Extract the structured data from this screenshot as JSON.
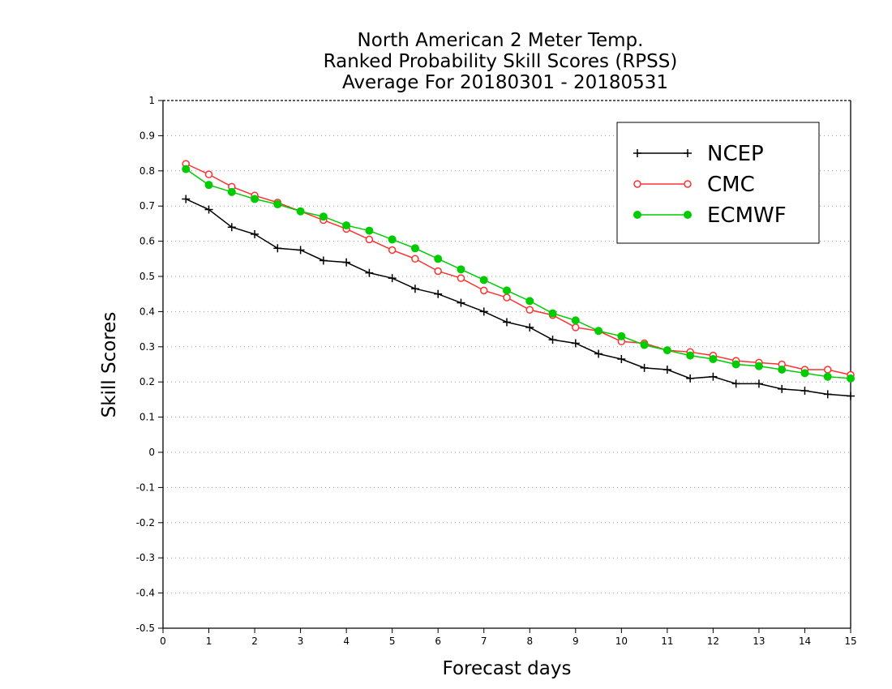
{
  "chart_data": {
    "type": "line",
    "title_lines": [
      "North American 2 Meter Temp.",
      "Ranked Probability Skill Scores (RPSS)",
      "Average For 20180301 - 20180531"
    ],
    "xlabel": "Forecast days",
    "ylabel": "Skill Scores",
    "xlim": [
      0,
      15
    ],
    "ylim": [
      -0.5,
      1
    ],
    "x_ticks": [
      0,
      1,
      2,
      3,
      4,
      5,
      6,
      7,
      8,
      9,
      10,
      11,
      12,
      13,
      14,
      15
    ],
    "x_tick_labels": [
      "0",
      "1",
      "2",
      "3",
      "4",
      "5",
      "6",
      "7",
      "8",
      "9",
      "10",
      "11",
      "12",
      "13",
      "14",
      "15"
    ],
    "y_ticks": [
      -0.5,
      -0.4,
      -0.3,
      -0.2,
      -0.1,
      0,
      0.1,
      0.2,
      0.3,
      0.4,
      0.5,
      0.6,
      0.7,
      0.8,
      0.9,
      1
    ],
    "y_tick_labels": [
      "-0.5",
      "-0.4",
      "-0.3",
      "-0.2",
      "-0.1",
      "0",
      "0.1",
      "0.2",
      "0.3",
      "0.4",
      "0.5",
      "0.6",
      "0.7",
      "0.8",
      "0.9",
      "1"
    ],
    "grid": "horizontal dotted",
    "legend_position": "top-right",
    "x": [
      0.5,
      1,
      1.5,
      2,
      2.5,
      3,
      3.5,
      4,
      4.5,
      5,
      5.5,
      6,
      6.5,
      7,
      7.5,
      8,
      8.5,
      9,
      9.5,
      10,
      10.5,
      11,
      11.5,
      12,
      12.5,
      13,
      13.5,
      14,
      14.5,
      15
    ],
    "series": [
      {
        "name": "NCEP",
        "color": "#000000",
        "marker": "plus",
        "values": [
          0.72,
          0.69,
          0.64,
          0.62,
          0.58,
          0.575,
          0.545,
          0.54,
          0.51,
          0.495,
          0.465,
          0.45,
          0.425,
          0.4,
          0.37,
          0.355,
          0.32,
          0.31,
          0.28,
          0.265,
          0.24,
          0.235,
          0.21,
          0.215,
          0.195,
          0.195,
          0.18,
          0.175,
          0.165,
          0.16
        ]
      },
      {
        "name": "CMC",
        "color": "#ff3030",
        "marker": "open-circle",
        "values": [
          0.82,
          0.79,
          0.755,
          0.73,
          0.71,
          0.685,
          0.66,
          0.635,
          0.605,
          0.575,
          0.55,
          0.515,
          0.495,
          0.46,
          0.44,
          0.405,
          0.39,
          0.355,
          0.345,
          0.315,
          0.31,
          0.29,
          0.285,
          0.275,
          0.26,
          0.255,
          0.25,
          0.235,
          0.235,
          0.22
        ]
      },
      {
        "name": "ECMWF",
        "color": "#00cc00",
        "marker": "filled-circle",
        "values": [
          0.805,
          0.76,
          0.74,
          0.72,
          0.705,
          0.685,
          0.67,
          0.645,
          0.63,
          0.605,
          0.58,
          0.55,
          0.52,
          0.49,
          0.46,
          0.43,
          0.395,
          0.375,
          0.345,
          0.33,
          0.305,
          0.29,
          0.275,
          0.265,
          0.25,
          0.245,
          0.235,
          0.225,
          0.215,
          0.21
        ]
      }
    ]
  }
}
